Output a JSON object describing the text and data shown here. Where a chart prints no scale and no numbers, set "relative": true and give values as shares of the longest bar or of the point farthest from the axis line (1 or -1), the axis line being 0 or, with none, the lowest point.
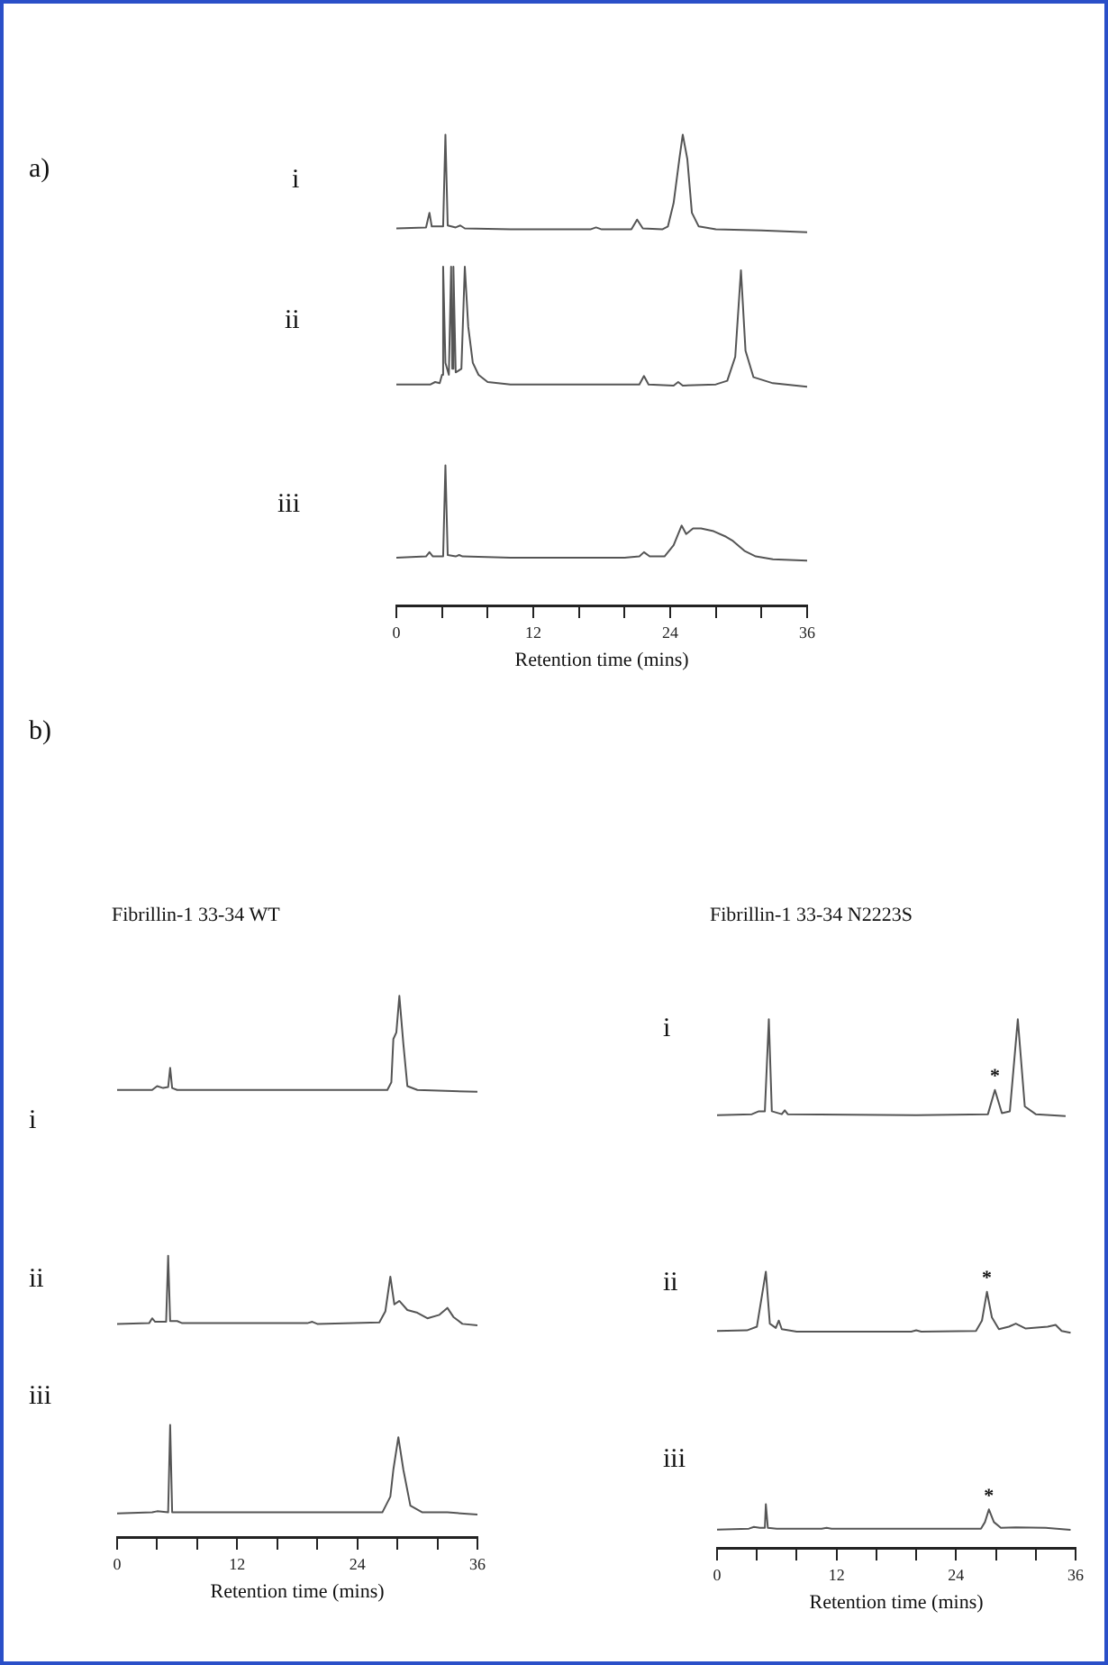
{
  "chart_data": [
    {
      "type": "line",
      "relative": true,
      "title": "i",
      "annotations": [
        "a)"
      ],
      "color": "#555555",
      "marker": "none",
      "xlim": [
        0,
        36
      ],
      "tick_labels": false,
      "x": [
        0,
        2.6,
        2.9,
        3.1,
        4.1,
        4.3,
        4.5,
        5.2,
        5.6,
        6,
        10,
        17,
        17.5,
        18,
        20.6,
        21.1,
        21.6,
        23.3,
        23.8,
        24.3,
        24.8,
        25.1,
        25.5,
        25.9,
        26.5,
        28,
        32,
        36
      ],
      "values": [
        0.04,
        0.05,
        0.2,
        0.06,
        0.06,
        1.0,
        0.07,
        0.05,
        0.07,
        0.04,
        0.03,
        0.03,
        0.05,
        0.03,
        0.03,
        0.13,
        0.04,
        0.03,
        0.06,
        0.3,
        0.75,
        1.0,
        0.75,
        0.2,
        0.06,
        0.03,
        0.02,
        0
      ]
    },
    {
      "type": "line",
      "relative": true,
      "title": "ii",
      "color": "#555555",
      "marker": "none",
      "xlim": [
        0,
        36
      ],
      "tick_labels": false,
      "x": [
        0,
        3,
        3.4,
        3.8,
        4.0,
        4.1,
        4.3,
        4.6,
        4.8,
        4.9,
        5.0,
        5.2,
        5.7,
        6.0,
        6.3,
        6.7,
        7.2,
        8,
        10,
        21.3,
        21.7,
        22.1,
        24.3,
        24.7,
        25.1,
        28,
        29,
        29.7,
        30.2,
        30.6,
        31.3,
        33,
        36
      ],
      "values": [
        0.02,
        0.02,
        0.04,
        0.03,
        0.1,
        1.0,
        0.2,
        0.1,
        1.0,
        0.15,
        1.0,
        0.12,
        0.15,
        1.0,
        0.5,
        0.2,
        0.1,
        0.04,
        0.02,
        0.02,
        0.09,
        0.02,
        0.01,
        0.04,
        0.01,
        0.02,
        0.05,
        0.25,
        0.97,
        0.3,
        0.08,
        0.03,
        0
      ]
    },
    {
      "type": "line",
      "relative": true,
      "title": "iii",
      "color": "#555555",
      "marker": "none",
      "xlim": [
        0,
        36
      ],
      "xlabel": "Retention time (mins)",
      "xticks": [
        0,
        {
          "value": 4,
          "label": null
        },
        {
          "value": 8,
          "label": null
        },
        12,
        {
          "value": 16,
          "label": null
        },
        {
          "value": 20,
          "label": null
        },
        24,
        {
          "value": 28,
          "label": null
        },
        {
          "value": 32,
          "label": null
        },
        36
      ],
      "x": [
        0,
        2.6,
        2.9,
        3.2,
        4.1,
        4.3,
        4.5,
        5.2,
        5.5,
        5.8,
        10,
        20,
        21.3,
        21.7,
        22.2,
        23.5,
        24.3,
        25,
        25.4,
        26,
        26.7,
        27.8,
        28.9,
        29.5,
        30.5,
        31.5,
        33,
        36
      ],
      "values": [
        0.34,
        0.35,
        0.38,
        0.35,
        0.35,
        1,
        0.36,
        0.35,
        0.36,
        0.35,
        0.34,
        0.34,
        0.35,
        0.38,
        0.35,
        0.35,
        0.43,
        0.57,
        0.51,
        0.55,
        0.55,
        0.53,
        0.49,
        0.46,
        0.39,
        0.35,
        0.33,
        0.32
      ]
    },
    {
      "type": "line",
      "relative": true,
      "title": "i",
      "subtitle": "Fibrillin-1 33-34 WT",
      "annotations": [
        "b)"
      ],
      "color": "#555555",
      "marker": "none",
      "xlim": [
        0,
        36
      ],
      "tick_labels": false,
      "x": [
        0,
        3.5,
        4.0,
        4.6,
        5.1,
        5.3,
        5.5,
        6,
        20,
        27,
        27.4,
        27.6,
        27.9,
        28.2,
        28.6,
        29,
        30,
        36
      ],
      "values": [
        0.02,
        0.02,
        0.06,
        0.04,
        0.05,
        0.25,
        0.04,
        0.02,
        0.02,
        0.02,
        0.1,
        0.55,
        0.62,
        1.0,
        0.5,
        0.06,
        0.02,
        0
      ]
    },
    {
      "type": "line",
      "relative": true,
      "title": "ii",
      "color": "#555555",
      "marker": "none",
      "xlim": [
        0,
        36
      ],
      "tick_labels": false,
      "x": [
        0,
        3.2,
        3.5,
        3.8,
        4.9,
        5.1,
        5.3,
        6,
        6.5,
        19,
        19.5,
        20,
        26.2,
        26.8,
        27.3,
        27.7,
        28.2,
        29,
        30,
        31,
        32.2,
        33,
        33.6,
        34.5,
        36
      ],
      "values": [
        0.02,
        0.03,
        0.1,
        0.05,
        0.05,
        1.0,
        0.06,
        0.06,
        0.03,
        0.03,
        0.05,
        0.02,
        0.04,
        0.2,
        0.7,
        0.3,
        0.35,
        0.22,
        0.18,
        0.1,
        0.15,
        0.25,
        0.12,
        0.02,
        0
      ]
    },
    {
      "type": "line",
      "relative": true,
      "title": "iii",
      "color": "#555555",
      "marker": "none",
      "xlim": [
        0,
        36
      ],
      "xlabel": "Retention time (mins)",
      "xticks": [
        0,
        {
          "value": 4,
          "label": null
        },
        {
          "value": 8,
          "label": null
        },
        12,
        {
          "value": 16,
          "label": null
        },
        {
          "value": 20,
          "label": null
        },
        24,
        {
          "value": 28,
          "label": null
        },
        {
          "value": 32,
          "label": null
        },
        36
      ],
      "x": [
        0,
        3.5,
        4,
        5.1,
        5.3,
        5.5,
        10,
        26.5,
        27.3,
        27.6,
        28.1,
        28.6,
        29.3,
        30.5,
        33,
        36
      ],
      "values": [
        0.21,
        0.22,
        0.23,
        0.22,
        1,
        0.22,
        0.22,
        0.22,
        0.36,
        0.6,
        0.89,
        0.6,
        0.28,
        0.22,
        0.22,
        0.2
      ]
    },
    {
      "type": "line",
      "relative": true,
      "title": "i",
      "subtitle": "Fibrillin-1 33-34 N2223S",
      "annotations": [
        {
          "text": "*",
          "x": 27.9,
          "y": 0.27
        }
      ],
      "color": "#555555",
      "marker": "none",
      "xlim": [
        0,
        36
      ],
      "tick_labels": false,
      "x": [
        0,
        3.5,
        4.2,
        4.8,
        5.2,
        5.5,
        6.5,
        6.8,
        7.1,
        20,
        27.2,
        27.9,
        28.6,
        29.4,
        30.2,
        30.9,
        32,
        35
      ],
      "values": [
        0.01,
        0.02,
        0.05,
        0.05,
        1.0,
        0.05,
        0.02,
        0.06,
        0.02,
        0.01,
        0.02,
        0.27,
        0.03,
        0.05,
        1.0,
        0.1,
        0.02,
        0
      ]
    },
    {
      "type": "line",
      "relative": true,
      "title": "ii",
      "annotations": [
        {
          "text": "*",
          "x": 27.1,
          "y": 0.67
        }
      ],
      "color": "#555555",
      "marker": "none",
      "xlim": [
        0,
        36
      ],
      "tick_labels": false,
      "x": [
        0,
        3,
        4,
        4.9,
        5.3,
        5.9,
        6.2,
        6.5,
        8,
        19.5,
        20,
        20.5,
        26,
        26.6,
        27.1,
        27.6,
        28.3,
        29.3,
        30,
        31,
        33.2,
        34,
        34.6,
        35.5
      ],
      "values": [
        0.03,
        0.04,
        0.1,
        1.0,
        0.15,
        0.08,
        0.2,
        0.06,
        0.02,
        0.02,
        0.04,
        0.02,
        0.03,
        0.2,
        0.67,
        0.25,
        0.06,
        0.1,
        0.15,
        0.07,
        0.1,
        0.13,
        0.03,
        0
      ]
    },
    {
      "type": "line",
      "relative": true,
      "title": "iii",
      "annotations": [
        {
          "text": "*",
          "x": 27.3,
          "y": 0.88
        }
      ],
      "color": "#555555",
      "marker": "none",
      "xlim": [
        0,
        36
      ],
      "xlabel": "Retention time (mins)",
      "xticks": [
        0,
        {
          "value": 4,
          "label": null
        },
        {
          "value": 8,
          "label": null
        },
        12,
        {
          "value": 16,
          "label": null
        },
        {
          "value": 20,
          "label": null
        },
        24,
        {
          "value": 28,
          "label": null
        },
        {
          "value": 32,
          "label": null
        },
        36
      ],
      "x": [
        0,
        3.2,
        3.7,
        4.3,
        4.8,
        4.9,
        5.1,
        6,
        10.5,
        11,
        11.5,
        26.5,
        26.9,
        27.3,
        27.8,
        28.5,
        30,
        33,
        35.5
      ],
      "values": [
        0.42,
        0.44,
        0.48,
        0.46,
        0.46,
        1,
        0.46,
        0.44,
        0.44,
        0.46,
        0.44,
        0.44,
        0.59,
        0.88,
        0.59,
        0.46,
        0.47,
        0.46,
        0.41
      ]
    }
  ]
}
